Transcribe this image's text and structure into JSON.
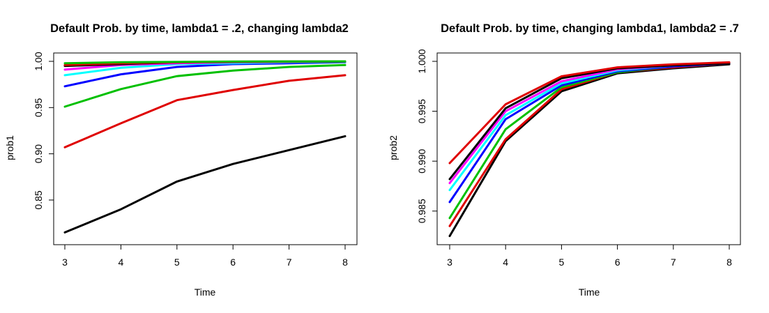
{
  "chart_data": [
    {
      "type": "line",
      "title": "Default Prob. by time, lambda1 = .2, changing lambda2",
      "xlabel": "Time",
      "ylabel": "prob1",
      "x": [
        3,
        4,
        5,
        6,
        7,
        8
      ],
      "xlim": [
        3,
        8
      ],
      "ylim": [
        0.81,
        1.0
      ],
      "xticks": [
        "3",
        "4",
        "5",
        "6",
        "7",
        "8"
      ],
      "yticks": [
        0.85,
        0.9,
        0.95,
        1.0
      ],
      "ytick_labels": [
        "0.85",
        "0.90",
        "0.95",
        "1.00"
      ],
      "grid": false,
      "series": [
        {
          "color": "#000000",
          "values": [
            0.815,
            0.84,
            0.87,
            0.889,
            0.904,
            0.919
          ]
        },
        {
          "color": "#df0000",
          "values": [
            0.907,
            0.933,
            0.958,
            0.969,
            0.979,
            0.985
          ]
        },
        {
          "color": "#00c000",
          "values": [
            0.951,
            0.97,
            0.984,
            0.99,
            0.994,
            0.996
          ]
        },
        {
          "color": "#0000ff",
          "values": [
            0.973,
            0.986,
            0.994,
            0.997,
            0.998,
            0.999
          ]
        },
        {
          "color": "#00ffff",
          "values": [
            0.985,
            0.993,
            0.997,
            0.998,
            0.999,
            0.9995
          ]
        },
        {
          "color": "#ff00ff",
          "values": [
            0.991,
            0.996,
            0.998,
            0.999,
            0.9995,
            0.9998
          ]
        },
        {
          "color": "#000000",
          "values": [
            0.995,
            0.997,
            0.999,
            0.9995,
            0.9998,
            0.9999
          ]
        },
        {
          "color": "#df0000",
          "values": [
            0.996,
            0.998,
            0.999,
            0.9996,
            0.9998,
            0.9999
          ]
        },
        {
          "color": "#00c000",
          "values": [
            0.998,
            0.999,
            0.9995,
            0.9998,
            0.9999,
            1.0
          ]
        }
      ]
    },
    {
      "type": "line",
      "title": "Default Prob. by time, changing lambda1, lambda2 = .7",
      "xlabel": "Time",
      "ylabel": "prob2",
      "x": [
        3,
        4,
        5,
        6,
        7,
        8
      ],
      "xlim": [
        3,
        8
      ],
      "ylim": [
        0.9824,
        1.0
      ],
      "xticks": [
        "3",
        "4",
        "5",
        "6",
        "7",
        "8"
      ],
      "yticks": [
        0.985,
        0.99,
        0.995,
        1.0
      ],
      "ytick_labels": [
        "0.985",
        "0.990",
        "0.995",
        "1.000"
      ],
      "grid": false,
      "series": [
        {
          "color": "#000000",
          "values": [
            0.9825,
            0.992,
            0.997,
            0.9988,
            0.9993,
            0.9997
          ]
        },
        {
          "color": "#df0000",
          "values": [
            0.9835,
            0.9922,
            0.9972,
            0.9989,
            0.9994,
            0.9998
          ]
        },
        {
          "color": "#00c000",
          "values": [
            0.9843,
            0.9932,
            0.9974,
            0.9989,
            0.9995,
            0.9998
          ]
        },
        {
          "color": "#0000ff",
          "values": [
            0.9859,
            0.9942,
            0.9976,
            0.999,
            0.9995,
            0.9998
          ]
        },
        {
          "color": "#00ffff",
          "values": [
            0.9871,
            0.9946,
            0.9978,
            0.9991,
            0.9996,
            0.9998
          ]
        },
        {
          "color": "#ff00ff",
          "values": [
            0.9878,
            0.995,
            0.998,
            0.9992,
            0.9996,
            0.9998
          ]
        },
        {
          "color": "#000000",
          "values": [
            0.9882,
            0.9953,
            0.9983,
            0.9993,
            0.9996,
            0.9998
          ]
        },
        {
          "color": "#df0000",
          "values": [
            0.9898,
            0.9957,
            0.9985,
            0.9994,
            0.9997,
            0.9999
          ]
        }
      ]
    }
  ]
}
